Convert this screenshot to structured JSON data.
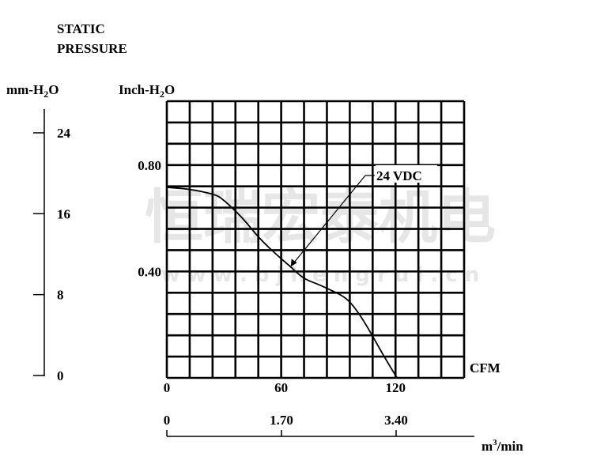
{
  "chart_data": {
    "type": "line",
    "title": [
      "STATIC",
      "PRESSURE"
    ],
    "ylabel_left": {
      "prefix": "mm-H",
      "sub": "2",
      "suffix": "O"
    },
    "ylabel": {
      "prefix": "Inch-H",
      "sub": "2",
      "suffix": "O"
    },
    "xlabel": "CFM",
    "xlabel2": {
      "prefix": "m",
      "sup": "3",
      "suffix": "/min"
    },
    "xlim": [
      0,
      156
    ],
    "ylim": [
      0,
      1.04
    ],
    "grid": true,
    "x_ticks": [
      "0",
      "60",
      "120"
    ],
    "x_tick_values": [
      0,
      60,
      120
    ],
    "y_ticks": [
      "0.40",
      "0.80"
    ],
    "y_tick_values": [
      0.4,
      0.8
    ],
    "left_axis_ticks": [
      "0",
      "8",
      "16",
      "24"
    ],
    "left_axis_values": [
      0,
      8,
      16,
      24
    ],
    "bottom_axis_ticks": [
      "0",
      "1.70",
      "3.40"
    ],
    "bottom_axis_values": [
      0,
      1.7,
      3.4
    ],
    "series": [
      {
        "name": "24 VDC",
        "x": [
          0,
          12,
          24.8,
          29,
          40,
          48.4,
          58,
          65,
          71.6,
          80,
          85.7,
          92,
          96.4,
          102,
          108.4,
          114,
          120.8
        ],
        "y": [
          0.716,
          0.71,
          0.69,
          0.675,
          0.6,
          0.525,
          0.46,
          0.418,
          0.373,
          0.35,
          0.331,
          0.31,
          0.284,
          0.23,
          0.152,
          0.08,
          0.0
        ]
      }
    ],
    "annotation": {
      "text": "24 VDC",
      "points_to_x": 65,
      "points_to_y": 0.418
    }
  },
  "watermark": {
    "text": "恒瑞宏泰机电",
    "url": "w w w . b j h e n g r u i . c n"
  }
}
